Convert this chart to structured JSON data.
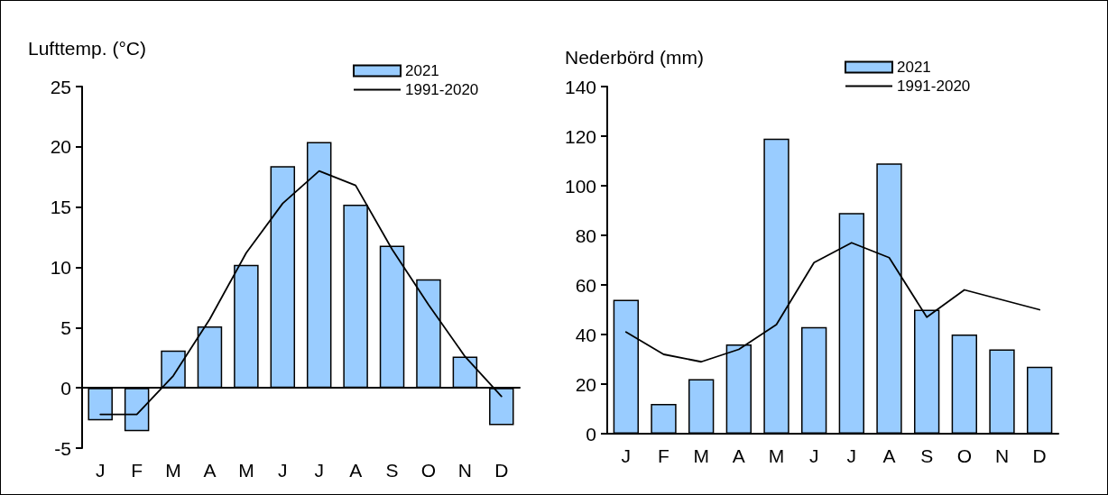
{
  "chart_data": [
    {
      "type": "bar",
      "ylabel": "Lufttemp. (°C)",
      "categories": [
        "J",
        "F",
        "M",
        "A",
        "M",
        "J",
        "J",
        "A",
        "S",
        "O",
        "N",
        "D"
      ],
      "series": [
        {
          "name": "2021",
          "color": "#99ccff",
          "values": [
            -2.7,
            -3.6,
            3.1,
            5.1,
            10.2,
            18.4,
            20.4,
            15.2,
            11.8,
            9.0,
            2.6,
            -3.1
          ]
        },
        {
          "name": "1991-2020",
          "type": "line",
          "color": "#000000",
          "values": [
            -2.2,
            -2.2,
            1.0,
            5.7,
            11.2,
            15.3,
            18.0,
            16.8,
            11.5,
            6.9,
            2.6,
            -0.7
          ]
        }
      ],
      "ylim": [
        -5,
        25
      ],
      "yticks": [
        -5,
        0,
        5,
        10,
        15,
        20,
        25
      ],
      "legend": "top right",
      "marker": "none",
      "line_style": "solid"
    },
    {
      "type": "bar",
      "ylabel": "Nederbörd (mm)",
      "categories": [
        "J",
        "F",
        "M",
        "A",
        "M",
        "J",
        "J",
        "A",
        "S",
        "O",
        "N",
        "D"
      ],
      "series": [
        {
          "name": "2021",
          "color": "#99ccff",
          "values": [
            54,
            12,
            22,
            36,
            119,
            43,
            89,
            109,
            50,
            40,
            34,
            27
          ]
        },
        {
          "name": "1991-2020",
          "type": "line",
          "color": "#000000",
          "values": [
            41,
            32,
            29,
            34,
            44,
            69,
            77,
            71,
            47,
            58,
            54,
            50
          ]
        }
      ],
      "ylim": [
        0,
        140
      ],
      "yticks": [
        0,
        20,
        40,
        60,
        80,
        100,
        120,
        140
      ],
      "legend": "top right",
      "marker": "none",
      "line_style": "solid"
    }
  ]
}
